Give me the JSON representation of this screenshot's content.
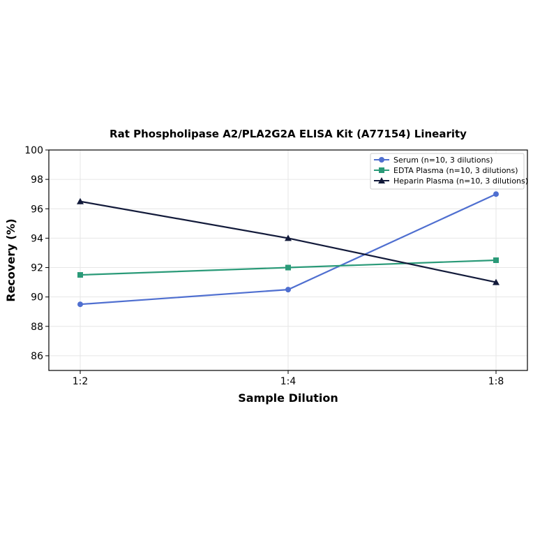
{
  "chart_data": {
    "type": "line",
    "title": "Rat Phospholipase A2/PLA2G2A ELISA Kit (A77154) Linearity",
    "xlabel": "Sample Dilution",
    "ylabel": "Recovery (%)",
    "categories": [
      "1:2",
      "1:4",
      "1:8"
    ],
    "ylim": [
      85,
      100
    ],
    "yticks": [
      86,
      88,
      90,
      92,
      94,
      96,
      98,
      100
    ],
    "grid": true,
    "legend_position": "top-right",
    "series": [
      {
        "name": "Serum (n=10, 3 dilutions)",
        "values": [
          89.5,
          90.5,
          97.0
        ],
        "color": "#4f6fd0",
        "marker": "circle"
      },
      {
        "name": "EDTA Plasma (n=10, 3 dilutions)",
        "values": [
          91.5,
          92.0,
          92.5
        ],
        "color": "#2a9a78",
        "marker": "square"
      },
      {
        "name": "Heparin Plasma (n=10, 3 dilutions)",
        "values": [
          96.5,
          94.0,
          91.0
        ],
        "color": "#121a3a",
        "marker": "triangle"
      }
    ]
  }
}
